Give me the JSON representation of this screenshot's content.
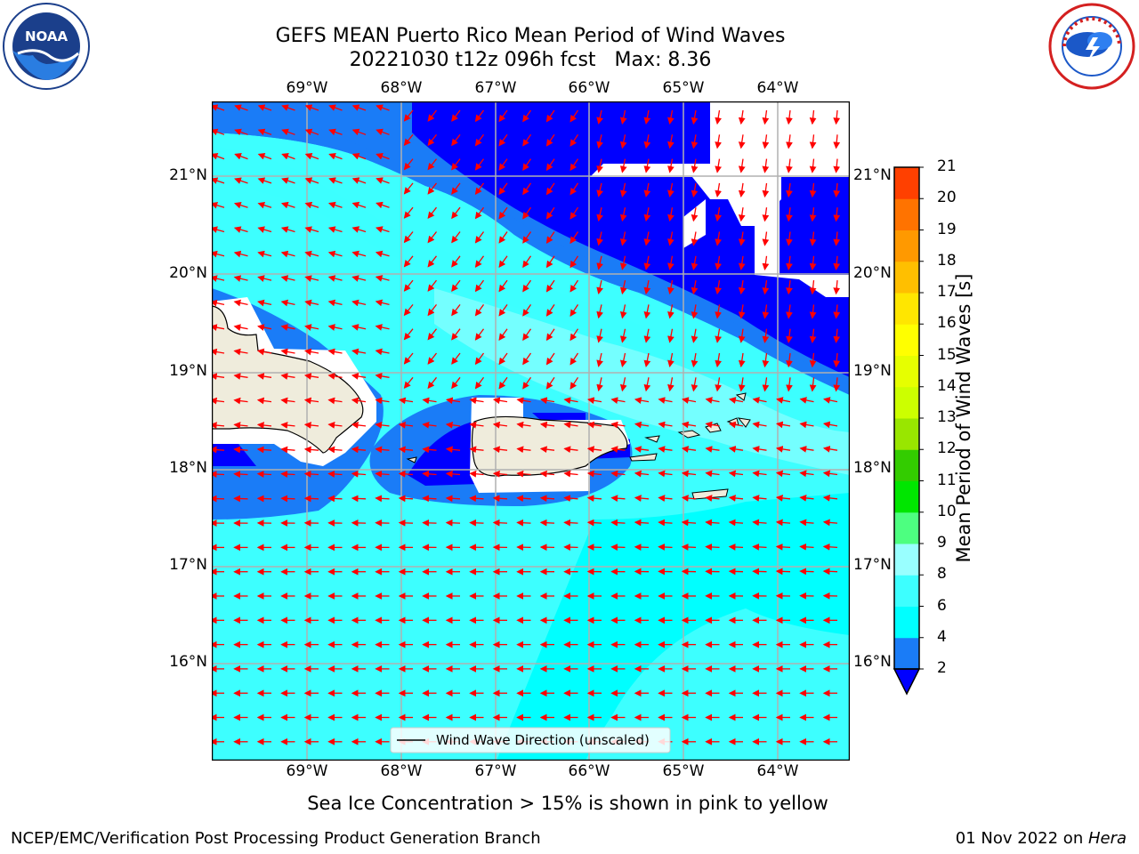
{
  "header": {
    "title_line1": "GEFS MEAN Puerto Rico Mean Period of Wind Waves",
    "title_line2": "20221030 t12z 096h fcst",
    "title_max": "Max: 8.36"
  },
  "logos": {
    "left": {
      "icon": "noaa-logo",
      "text": "NOAA"
    },
    "right": {
      "icon": "nws-logo"
    }
  },
  "map": {
    "lon_labels": [
      "69°W",
      "68°W",
      "67°W",
      "66°W",
      "65°W",
      "64°W"
    ],
    "lat_labels": [
      "21°N",
      "20°N",
      "19°N",
      "18°N",
      "17°N",
      "16°N"
    ],
    "legend_label": "Wind Wave Direction (unscaled)",
    "field_colors": {
      "band_2_4": "#1a7cf7",
      "band_4_6": "#00ffff",
      "band_6_8": "#3dffff",
      "band_8_9": "#99ffff",
      "below_2": "#0000ff",
      "land": "#efecdc",
      "arrow": "#ff0000"
    }
  },
  "colorbar": {
    "label": "Mean Period of Wind Waves [s]",
    "ticks": [
      "2",
      "4",
      "6",
      "8",
      "9",
      "10",
      "11",
      "12",
      "13",
      "14",
      "15",
      "16",
      "17",
      "18",
      "19",
      "20",
      "21"
    ],
    "colors": [
      "#1a7cf7",
      "#00ffff",
      "#3dffff",
      "#99ffff",
      "#4dff80",
      "#00e600",
      "#33cc00",
      "#99e600",
      "#ccff00",
      "#e6ff00",
      "#ffff00",
      "#ffe600",
      "#ffbf00",
      "#ff9900",
      "#ff7300",
      "#ff4000",
      "#ff0000"
    ],
    "under_color": "#0000ff"
  },
  "notes": {
    "sea_ice": "Sea Ice Concentration > 15% is shown in pink to yellow"
  },
  "footer": {
    "left": "NCEP/EMC/Verification Post Processing Product Generation Branch",
    "date": "01 Nov 2022 on ",
    "host": "Hera"
  }
}
